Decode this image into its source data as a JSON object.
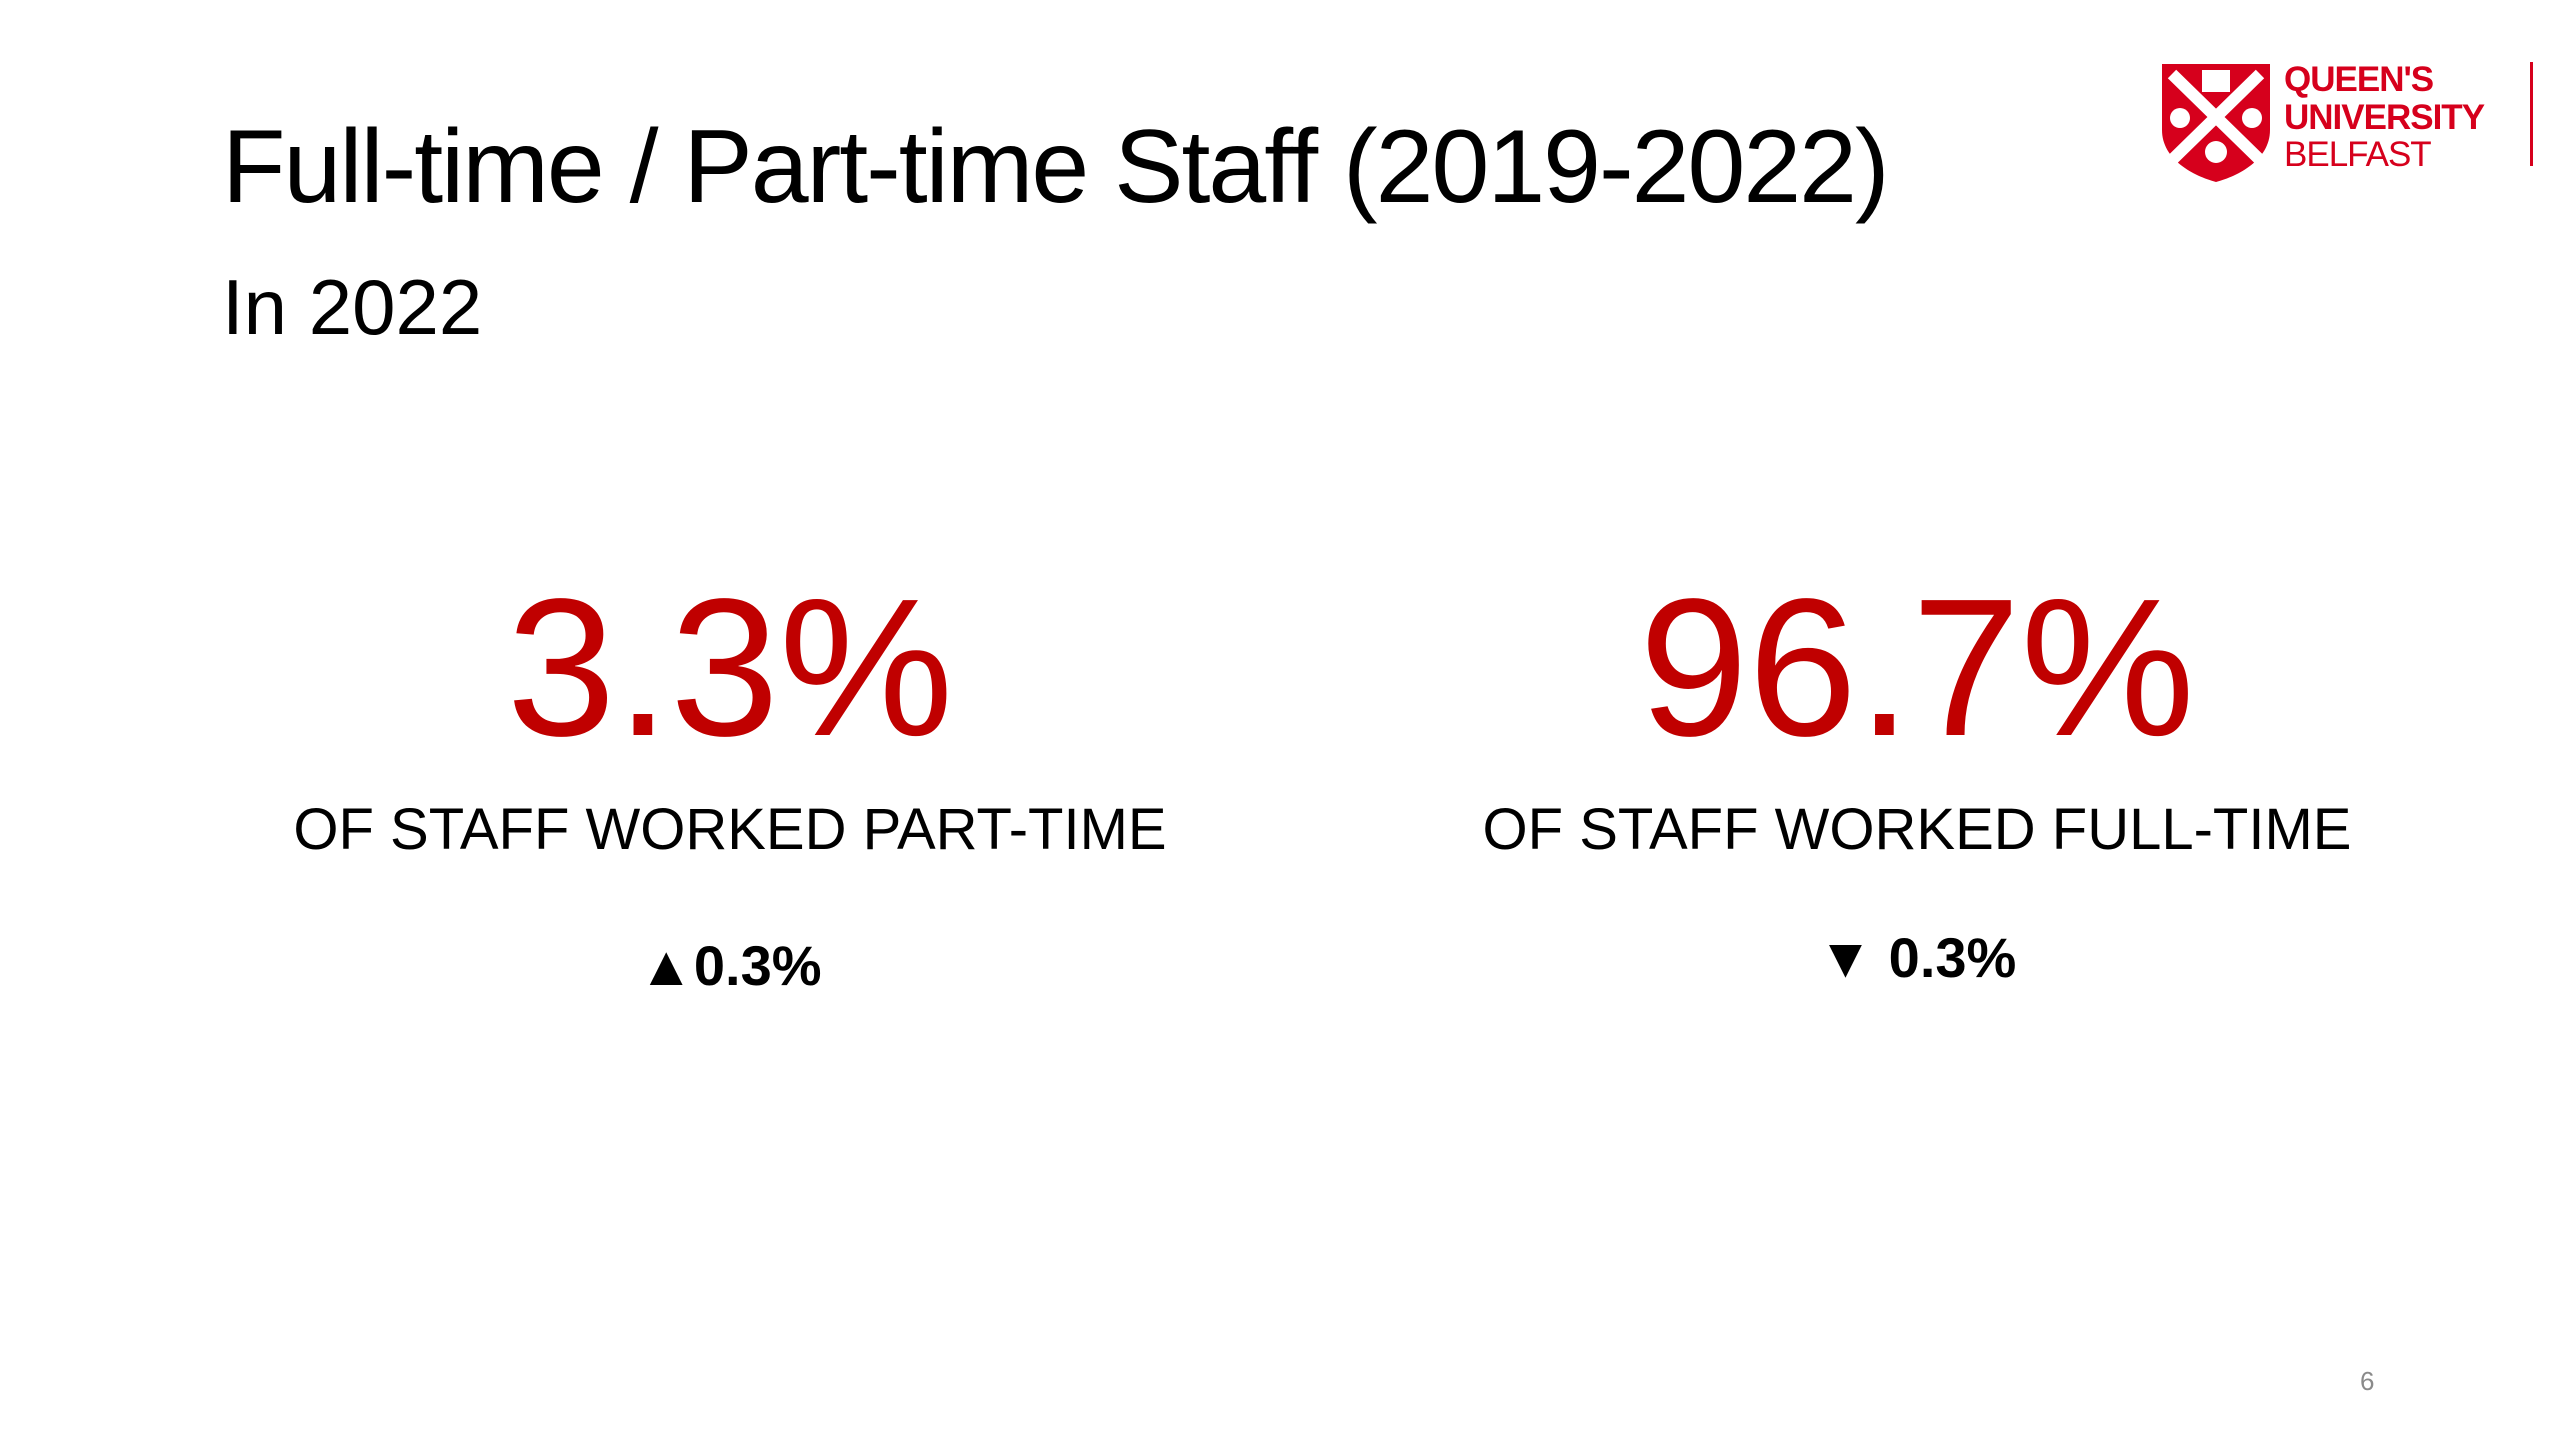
{
  "header": {
    "title": "Full-time / Part-time Staff (2019-2022)",
    "subtitle": "In 2022"
  },
  "logo": {
    "lines": [
      "QUEEN'S",
      "UNIVERSITY",
      "BELFAST"
    ]
  },
  "stats": [
    {
      "value": "3.3%",
      "label": "OF STAFF WORKED PART-TIME",
      "change": "▲0.3%"
    },
    {
      "value": "96.7%",
      "label": "OF STAFF WORKED FULL-TIME",
      "change": "▼ 0.3%"
    }
  ],
  "page_number": "6"
}
